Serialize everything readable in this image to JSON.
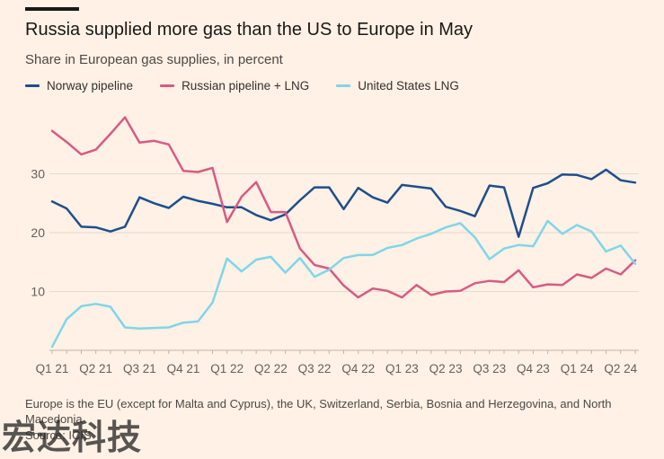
{
  "header": {
    "title": "Russia supplied more gas than the US to Europe in May",
    "subtitle": "Share in European gas supplies, in percent"
  },
  "footer": {
    "note": "Europe is the EU (except for Malta and Cyprus), the UK, Switzerland, Serbia, Bosnia and Herzegovina, and North Macedonia",
    "source": "Source: ICIS",
    "watermark": "宏达科技"
  },
  "chart_data": {
    "type": "line",
    "title": "Russia supplied more gas than the US to Europe in May",
    "subtitle": "Share in European gas supplies, in percent",
    "xlabel": "",
    "ylabel": "",
    "ylim": [
      0,
      40
    ],
    "yticks": [
      10,
      20,
      30
    ],
    "grid": true,
    "legend": "top",
    "x_tick_labels": [
      "Q1 21",
      "Q2 21",
      "Q3 21",
      "Q4 21",
      "Q1 22",
      "Q2 22",
      "Q3 22",
      "Q4 22",
      "Q1 23",
      "Q2 23",
      "Q3 23",
      "Q4 23",
      "Q1 24",
      "Q2 24"
    ],
    "x": [
      "Jan 21",
      "Feb 21",
      "Mar 21",
      "Apr 21",
      "May 21",
      "Jun 21",
      "Jul 21",
      "Aug 21",
      "Sep 21",
      "Oct 21",
      "Nov 21",
      "Dec 21",
      "Jan 22",
      "Feb 22",
      "Mar 22",
      "Apr 22",
      "May 22",
      "Jun 22",
      "Jul 22",
      "Aug 22",
      "Sep 22",
      "Oct 22",
      "Nov 22",
      "Dec 22",
      "Jan 23",
      "Feb 23",
      "Mar 23",
      "Apr 23",
      "May 23",
      "Jun 23",
      "Jul 23",
      "Aug 23",
      "Sep 23",
      "Oct 23",
      "Nov 23",
      "Dec 23",
      "Jan 24",
      "Feb 24",
      "Mar 24",
      "Apr 24",
      "May 24"
    ],
    "series": [
      {
        "name": "Norway pipeline",
        "color": "#1E4E8C",
        "values": [
          25.3,
          24.1,
          21.0,
          20.9,
          20.2,
          21.0,
          26.0,
          25.0,
          24.2,
          26.1,
          25.4,
          24.9,
          24.3,
          24.3,
          23.0,
          22.1,
          23.1,
          25.5,
          27.7,
          27.7,
          24.0,
          27.6,
          26.0,
          25.1,
          28.1,
          27.8,
          27.5,
          24.4,
          23.7,
          22.8,
          28.0,
          27.7,
          19.3,
          27.6,
          28.4,
          29.9,
          29.8,
          29.1,
          30.7,
          28.9,
          28.5
        ]
      },
      {
        "name": "Russian pipeline + LNG",
        "color": "#D75B84",
        "values": [
          37.3,
          35.4,
          33.3,
          34.1,
          36.8,
          39.6,
          35.3,
          35.6,
          35.0,
          30.5,
          30.3,
          31.0,
          21.8,
          26.1,
          28.6,
          23.5,
          23.5,
          17.3,
          14.5,
          13.9,
          11.0,
          9.0,
          10.5,
          10.1,
          9.0,
          11.1,
          9.4,
          10.0,
          10.1,
          11.4,
          11.8,
          11.6,
          13.6,
          10.7,
          11.2,
          11.1,
          12.9,
          12.3,
          13.9,
          12.9,
          15.3
        ]
      },
      {
        "name": "United States LNG",
        "color": "#7FD6E8",
        "values": [
          0.6,
          5.3,
          7.5,
          7.9,
          7.4,
          3.9,
          3.7,
          3.8,
          3.9,
          4.7,
          4.9,
          8.1,
          15.6,
          13.4,
          15.4,
          15.9,
          13.2,
          15.7,
          12.5,
          13.7,
          15.7,
          16.2,
          16.2,
          17.4,
          17.9,
          19.0,
          19.8,
          20.9,
          21.6,
          19.2,
          15.5,
          17.3,
          17.9,
          17.7,
          22.0,
          19.8,
          21.3,
          20.2,
          16.8,
          17.8,
          14.7
        ]
      }
    ]
  }
}
